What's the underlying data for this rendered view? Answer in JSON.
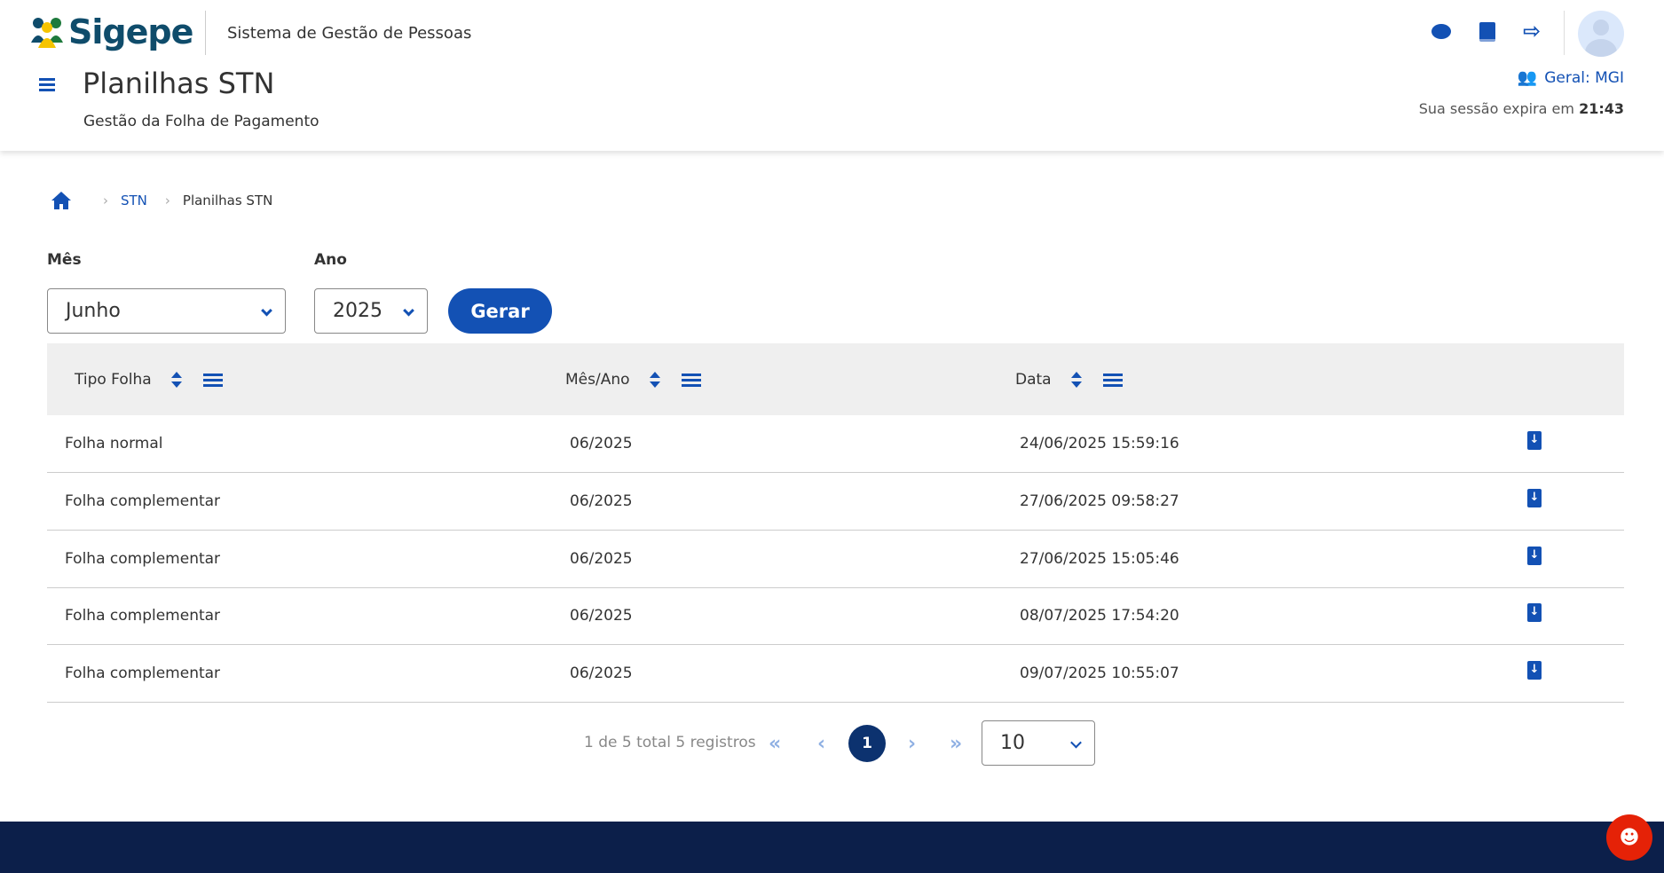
{
  "header": {
    "logo": "Sigepe",
    "system_name": "Sistema de Gestão de Pessoas",
    "page_title": "Planilhas STN",
    "page_subtitle": "Gestão da Folha de Pagamento",
    "profile": "Geral: MGI",
    "session_label": "Sua sessão expira em",
    "session_time": "21:43"
  },
  "breadcrumb": {
    "items": [
      "STN",
      "Planilhas STN"
    ]
  },
  "filters": {
    "month_label": "Mês",
    "month_value": "Junho",
    "year_label": "Ano",
    "year_value": "2025",
    "generate_label": "Gerar"
  },
  "table": {
    "columns": [
      "Tipo Folha",
      "Mês/Ano",
      "Data"
    ],
    "rows": [
      {
        "tipo": "Folha normal",
        "mes_ano": "06/2025",
        "data": "24/06/2025 15:59:16"
      },
      {
        "tipo": "Folha complementar",
        "mes_ano": "06/2025",
        "data": "27/06/2025 09:58:27"
      },
      {
        "tipo": "Folha complementar",
        "mes_ano": "06/2025",
        "data": "27/06/2025 15:05:46"
      },
      {
        "tipo": "Folha complementar",
        "mes_ano": "06/2025",
        "data": "08/07/2025 17:54:20"
      },
      {
        "tipo": "Folha complementar",
        "mes_ano": "06/2025",
        "data": "09/07/2025 10:55:07"
      }
    ]
  },
  "pagination": {
    "summary": "1 de 5 total 5 registros",
    "current_page": "1",
    "page_size": "10"
  },
  "colors": {
    "primary": "#1351b4",
    "footer": "#0c1f4a",
    "active_page": "#0c326f",
    "chat": "#e52207"
  }
}
